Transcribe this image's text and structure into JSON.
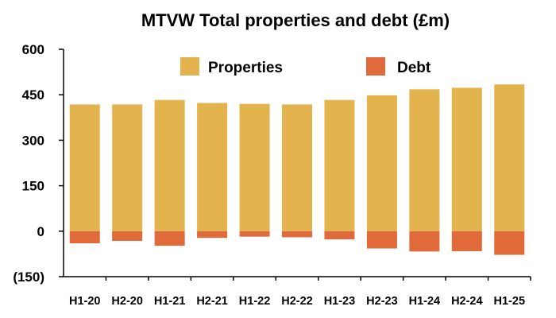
{
  "chart_data": {
    "type": "bar",
    "title": "MTVW Total properties and debt (£m)",
    "xlabel": "",
    "ylabel": "",
    "ylim": [
      -150,
      600
    ],
    "yticks": [
      -150,
      0,
      150,
      300,
      450,
      600
    ],
    "ytick_labels": [
      "(150)",
      "0",
      "150",
      "300",
      "450",
      "600"
    ],
    "categories": [
      "H1-20",
      "H2-20",
      "H1-21",
      "H2-21",
      "H1-22",
      "H2-22",
      "H1-23",
      "H2-23",
      "H1-24",
      "H2-24",
      "H1-25"
    ],
    "series": [
      {
        "name": "Properties",
        "color": "#E3B44E",
        "values": [
          418,
          418,
          433,
          423,
          420,
          418,
          433,
          448,
          468,
          473,
          484
        ]
      },
      {
        "name": "Debt",
        "color": "#E06A3A",
        "values": [
          -40,
          -32,
          -48,
          -22,
          -18,
          -20,
          -27,
          -57,
          -67,
          -66,
          -78
        ]
      }
    ],
    "stacked": true,
    "grid": false,
    "legend_position": "top"
  }
}
